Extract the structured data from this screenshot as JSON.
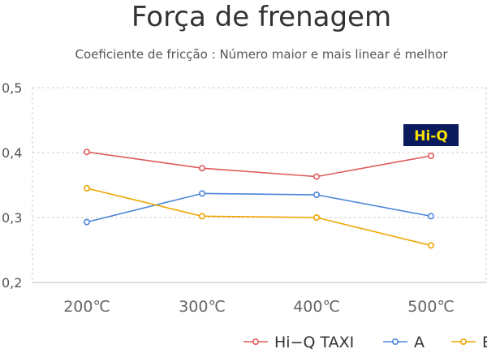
{
  "chart_data": {
    "type": "line",
    "title": "Força de frenagem",
    "subtitle": "Coeficiente de fricção : Número maior e mais linear é melhor",
    "categories": [
      "200℃",
      "300℃",
      "400℃",
      "500℃"
    ],
    "ylim": [
      0.2,
      0.5
    ],
    "yticks": [
      "0,2",
      "0,3",
      "0,4",
      "0,5"
    ],
    "ytick_values": [
      0.2,
      0.3,
      0.4,
      0.5
    ],
    "grid": true,
    "legend_position": "bottom-right",
    "series": [
      {
        "name": "Hi−Q TAXI",
        "color": "#e05a5a",
        "values": [
          0.401,
          0.376,
          0.363,
          0.395
        ]
      },
      {
        "name": "A",
        "color": "#4a86d8",
        "values": [
          0.293,
          0.337,
          0.335,
          0.302
        ]
      },
      {
        "name": "B",
        "color": "#f0a500",
        "values": [
          0.345,
          0.302,
          0.3,
          0.257
        ]
      }
    ],
    "annotation": {
      "label": "Hi-Q",
      "bg_color": "#0a1a5c",
      "text_color": "#f5e000",
      "category": "500℃"
    }
  }
}
